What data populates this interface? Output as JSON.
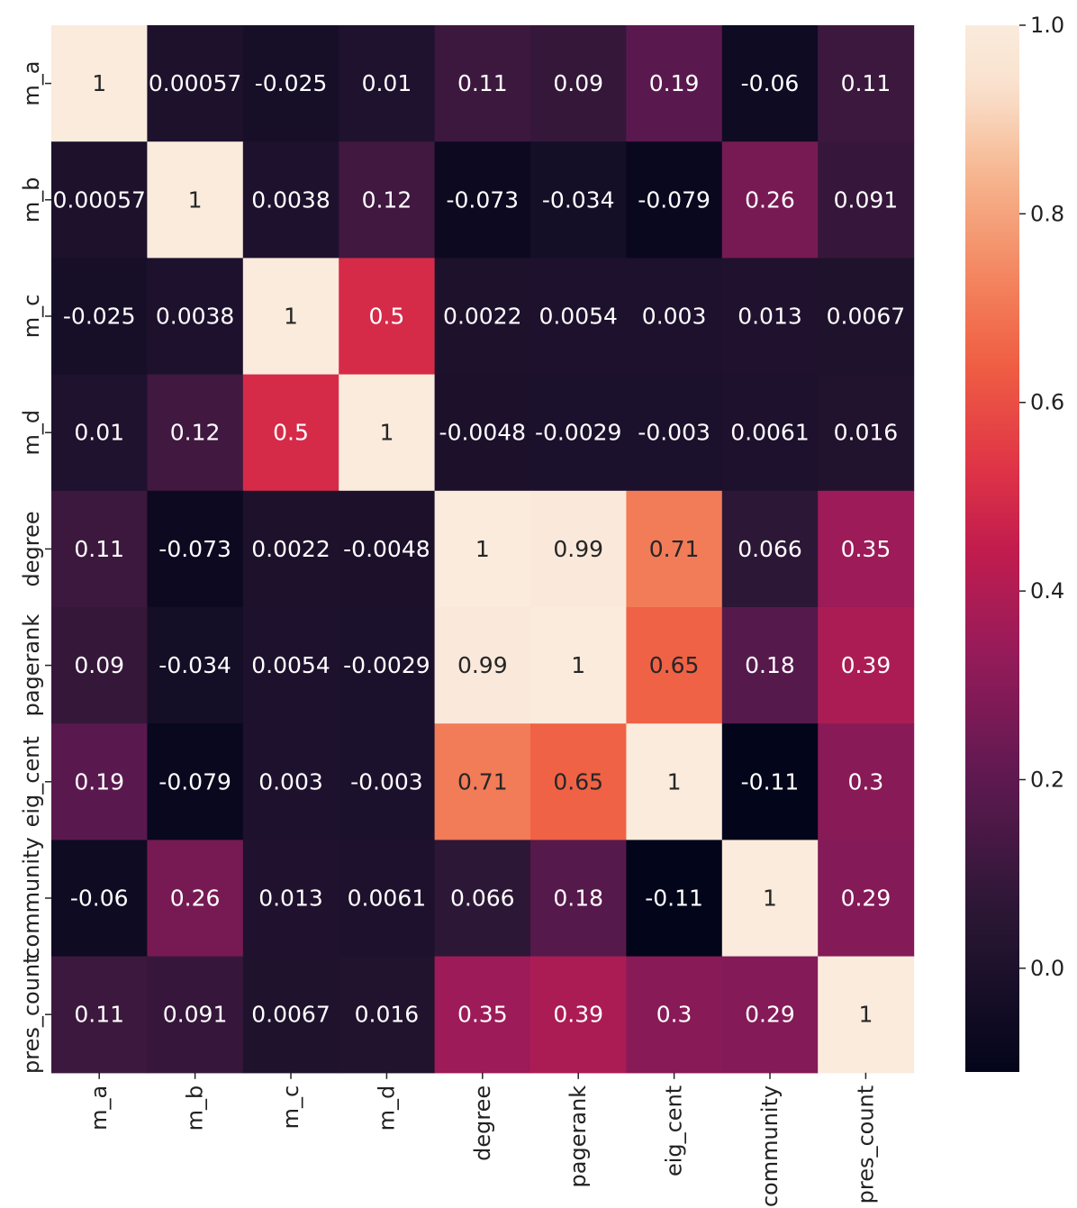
{
  "chart_data": {
    "type": "heatmap",
    "title": "",
    "variables": [
      "m_a",
      "m_b",
      "m_c",
      "m_d",
      "degree",
      "pagerank",
      "eig_cent",
      "community",
      "pres_count"
    ],
    "values": [
      [
        1,
        0.00057,
        -0.025,
        0.01,
        0.11,
        0.09,
        0.19,
        -0.06,
        0.11
      ],
      [
        0.00057,
        1,
        0.0038,
        0.12,
        -0.073,
        -0.034,
        -0.079,
        0.26,
        0.091
      ],
      [
        -0.025,
        0.0038,
        1,
        0.5,
        0.0022,
        0.0054,
        0.003,
        0.013,
        0.0067
      ],
      [
        0.01,
        0.12,
        0.5,
        1,
        -0.0048,
        -0.0029,
        -0.003,
        0.0061,
        0.016
      ],
      [
        0.11,
        -0.073,
        0.0022,
        -0.0048,
        1,
        0.99,
        0.71,
        0.066,
        0.35
      ],
      [
        0.09,
        -0.034,
        0.0054,
        -0.0029,
        0.99,
        1,
        0.65,
        0.18,
        0.39
      ],
      [
        0.19,
        -0.079,
        0.003,
        -0.003,
        0.71,
        0.65,
        1,
        -0.11,
        0.3
      ],
      [
        -0.06,
        0.26,
        0.013,
        0.0061,
        0.066,
        0.18,
        -0.11,
        1,
        0.29
      ],
      [
        0.11,
        0.091,
        0.0067,
        0.016,
        0.35,
        0.39,
        0.3,
        0.29,
        1
      ]
    ],
    "labels": [
      [
        "1",
        "0.00057",
        "-0.025",
        "0.01",
        "0.11",
        "0.09",
        "0.19",
        "-0.06",
        "0.11"
      ],
      [
        "0.00057",
        "1",
        "0.0038",
        "0.12",
        "-0.073",
        "-0.034",
        "-0.079",
        "0.26",
        "0.091"
      ],
      [
        "-0.025",
        "0.0038",
        "1",
        "0.5",
        "0.0022",
        "0.0054",
        "0.003",
        "0.013",
        "0.0067"
      ],
      [
        "0.01",
        "0.12",
        "0.5",
        "1",
        "-0.0048",
        "-0.0029",
        "-0.003",
        "0.0061",
        "0.016"
      ],
      [
        "0.11",
        "-0.073",
        "0.0022",
        "-0.0048",
        "1",
        "0.99",
        "0.71",
        "0.066",
        "0.35"
      ],
      [
        "0.09",
        "-0.034",
        "0.0054",
        "-0.0029",
        "0.99",
        "1",
        "0.65",
        "0.18",
        "0.39"
      ],
      [
        "0.19",
        "-0.079",
        "0.003",
        "-0.003",
        "0.71",
        "0.65",
        "1",
        "-0.11",
        "0.3"
      ],
      [
        "-0.06",
        "0.26",
        "0.013",
        "0.0061",
        "0.066",
        "0.18",
        "-0.11",
        "1",
        "0.29"
      ],
      [
        "0.11",
        "0.091",
        "0.0067",
        "0.016",
        "0.35",
        "0.39",
        "0.3",
        "0.29",
        "1"
      ]
    ],
    "colormap": "rocket",
    "vmin": -0.11,
    "vmax": 1.0,
    "colorbar_ticks": [
      0.0,
      0.2,
      0.4,
      0.6,
      0.8,
      1.0
    ],
    "colorbar_tick_labels": [
      "0.0",
      "0.2",
      "0.4",
      "0.6",
      "0.8",
      "1.0"
    ],
    "annotations": true,
    "grid": false,
    "legend": "colorbar-right"
  }
}
